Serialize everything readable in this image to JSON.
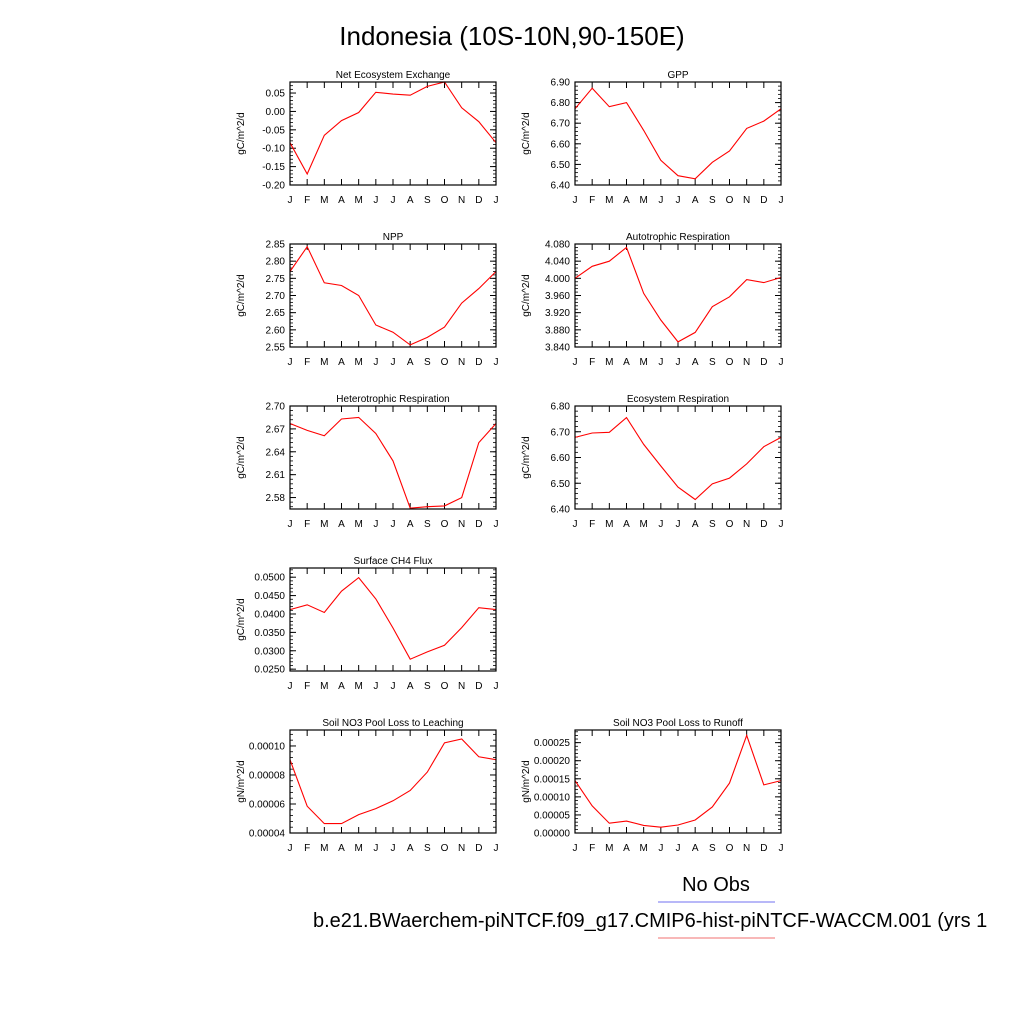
{
  "title": "Indonesia (10S-10N,90-150E)",
  "colors": {
    "line": "#ff0000",
    "frame": "#000000",
    "obs_legend": "#7070f0",
    "model_legend": "#f07070"
  },
  "legend": {
    "obs_label": "No Obs",
    "model_label": "b.e21.BWaerchem-piNTCF.f09_g17.CMIP6-hist-piNTCF-WACCM.001 (yrs 1"
  },
  "chart_data": [
    {
      "type": "line",
      "title": "Net Ecosystem Exchange",
      "xlabel": "",
      "ylabel": "gC/m^2/d",
      "categories": [
        "J",
        "F",
        "M",
        "A",
        "M",
        "J",
        "J",
        "A",
        "S",
        "O",
        "N",
        "D",
        "J"
      ],
      "yticks": [
        "0.05",
        "0.00",
        "-0.05",
        "-0.10",
        "-0.15",
        "-0.20"
      ],
      "ylim": [
        -0.2,
        0.08
      ],
      "ymajor": [
        0.05,
        0.0,
        -0.05,
        -0.1,
        -0.15,
        -0.2
      ],
      "yminor": 0.01,
      "values": [
        -0.085,
        -0.17,
        -0.065,
        -0.025,
        -0.003,
        0.052,
        0.047,
        0.044,
        0.068,
        0.08,
        0.01,
        -0.028,
        -0.085
      ]
    },
    {
      "type": "line",
      "title": "GPP",
      "xlabel": "",
      "ylabel": "gC/m^2/d",
      "categories": [
        "J",
        "F",
        "M",
        "A",
        "M",
        "J",
        "J",
        "A",
        "S",
        "O",
        "N",
        "D",
        "J"
      ],
      "yticks": [
        "6.90",
        "6.80",
        "6.70",
        "6.60",
        "6.50",
        "6.40"
      ],
      "ylim": [
        6.4,
        6.9
      ],
      "ymajor": [
        6.9,
        6.8,
        6.7,
        6.6,
        6.5,
        6.4
      ],
      "yminor": 0.02,
      "values": [
        6.77,
        6.87,
        6.78,
        6.8,
        6.665,
        6.52,
        6.445,
        6.43,
        6.51,
        6.565,
        6.675,
        6.71,
        6.77
      ]
    },
    {
      "type": "line",
      "title": "NPP",
      "xlabel": "",
      "ylabel": "gC/m^2/d",
      "categories": [
        "J",
        "F",
        "M",
        "A",
        "M",
        "J",
        "J",
        "A",
        "S",
        "O",
        "N",
        "D",
        "J"
      ],
      "yticks": [
        "2.85",
        "2.80",
        "2.75",
        "2.70",
        "2.65",
        "2.60",
        "2.55"
      ],
      "ylim": [
        2.55,
        2.85
      ],
      "ymajor": [
        2.85,
        2.8,
        2.75,
        2.7,
        2.65,
        2.6,
        2.55
      ],
      "yminor": 0.01,
      "values": [
        2.77,
        2.842,
        2.737,
        2.729,
        2.7,
        2.614,
        2.593,
        2.556,
        2.578,
        2.608,
        2.678,
        2.72,
        2.77
      ]
    },
    {
      "type": "line",
      "title": "Autotrophic Respiration",
      "xlabel": "",
      "ylabel": "gC/m^2/d",
      "categories": [
        "J",
        "F",
        "M",
        "A",
        "M",
        "J",
        "J",
        "A",
        "S",
        "O",
        "N",
        "D",
        "J"
      ],
      "yticks": [
        "4.080",
        "4.040",
        "4.000",
        "3.960",
        "3.920",
        "3.880",
        "3.840"
      ],
      "ylim": [
        3.84,
        4.08
      ],
      "ymajor": [
        4.08,
        4.04,
        4.0,
        3.96,
        3.92,
        3.88,
        3.84
      ],
      "yminor": 0.008,
      "values": [
        4.0,
        4.028,
        4.04,
        4.072,
        3.965,
        3.903,
        3.852,
        3.874,
        3.934,
        3.957,
        3.997,
        3.99,
        4.002
      ]
    },
    {
      "type": "line",
      "title": "Heterotrophic Respiration",
      "xlabel": "",
      "ylabel": "gC/m^2/d",
      "categories": [
        "J",
        "F",
        "M",
        "A",
        "M",
        "J",
        "J",
        "A",
        "S",
        "O",
        "N",
        "D",
        "J"
      ],
      "yticks": [
        "2.70",
        "2.67",
        "2.64",
        "2.61",
        "2.58"
      ],
      "ylim": [
        2.565,
        2.7
      ],
      "ymajor": [
        2.7,
        2.67,
        2.64,
        2.61,
        2.58
      ],
      "yminor": 0.006,
      "values": [
        2.677,
        2.668,
        2.661,
        2.683,
        2.685,
        2.664,
        2.628,
        2.566,
        2.568,
        2.569,
        2.58,
        2.652,
        2.677
      ]
    },
    {
      "type": "line",
      "title": "Ecosystem Respiration",
      "xlabel": "",
      "ylabel": "gC/m^2/d",
      "categories": [
        "J",
        "F",
        "M",
        "A",
        "M",
        "J",
        "J",
        "A",
        "S",
        "O",
        "N",
        "D",
        "J"
      ],
      "yticks": [
        "6.80",
        "6.70",
        "6.60",
        "6.50",
        "6.40"
      ],
      "ylim": [
        6.4,
        6.8
      ],
      "ymajor": [
        6.8,
        6.7,
        6.6,
        6.5,
        6.4
      ],
      "yminor": 0.02,
      "values": [
        6.678,
        6.695,
        6.698,
        6.755,
        6.651,
        6.567,
        6.485,
        6.437,
        6.498,
        6.52,
        6.575,
        6.642,
        6.678
      ]
    },
    {
      "type": "line",
      "title": "Surface CH4 Flux",
      "xlabel": "",
      "ylabel": "gC/m^2/d",
      "categories": [
        "J",
        "F",
        "M",
        "A",
        "M",
        "J",
        "J",
        "A",
        "S",
        "O",
        "N",
        "D",
        "J"
      ],
      "yticks": [
        "0.0500",
        "0.0450",
        "0.0400",
        "0.0350",
        "0.0300",
        "0.0250"
      ],
      "ylim": [
        0.0245,
        0.0525
      ],
      "ymajor": [
        0.05,
        0.045,
        0.04,
        0.035,
        0.03,
        0.025
      ],
      "yminor": 0.001,
      "values": [
        0.0412,
        0.0425,
        0.0404,
        0.0462,
        0.0499,
        0.0441,
        0.0362,
        0.0277,
        0.0297,
        0.0315,
        0.0363,
        0.0417,
        0.0412
      ]
    },
    {
      "type": "line",
      "title": "Soil NO3 Pool Loss to Leaching",
      "xlabel": "",
      "ylabel": "gN/m^2/d",
      "categories": [
        "J",
        "F",
        "M",
        "A",
        "M",
        "J",
        "J",
        "A",
        "S",
        "O",
        "N",
        "D",
        "J"
      ],
      "yticks": [
        "0.00010",
        "0.00008",
        "0.00006",
        "0.00004"
      ],
      "ylim": [
        4e-05,
        0.000111
      ],
      "ymajor": [
        0.0001,
        8e-05,
        6e-05,
        4e-05
      ],
      "yminor": 4e-06,
      "values": [
        9.05e-05,
        5.85e-05,
        4.65e-05,
        4.65e-05,
        5.27e-05,
        5.68e-05,
        6.22e-05,
        6.93e-05,
        8.2e-05,
        0.0001022,
        0.0001048,
        9.25e-05,
        9.05e-05
      ]
    },
    {
      "type": "line",
      "title": "Soil NO3 Pool Loss to Runoff",
      "xlabel": "",
      "ylabel": "gN/m^2/d",
      "categories": [
        "J",
        "F",
        "M",
        "A",
        "M",
        "J",
        "J",
        "A",
        "S",
        "O",
        "N",
        "D",
        "J"
      ],
      "yticks": [
        "0.00025",
        "0.00020",
        "0.00015",
        "0.00010",
        "0.00005",
        "0.00000"
      ],
      "ylim": [
        0,
        0.000285
      ],
      "ymajor": [
        0.00025,
        0.0002,
        0.00015,
        0.0001,
        5e-05,
        0.0
      ],
      "yminor": 1e-05,
      "values": [
        0.000145,
        7.5e-05,
        2.7e-05,
        3.3e-05,
        2.1e-05,
        1.6e-05,
        2.2e-05,
        3.6e-05,
        7.2e-05,
        0.000138,
        0.00027,
        0.000133,
        0.000145
      ]
    }
  ]
}
